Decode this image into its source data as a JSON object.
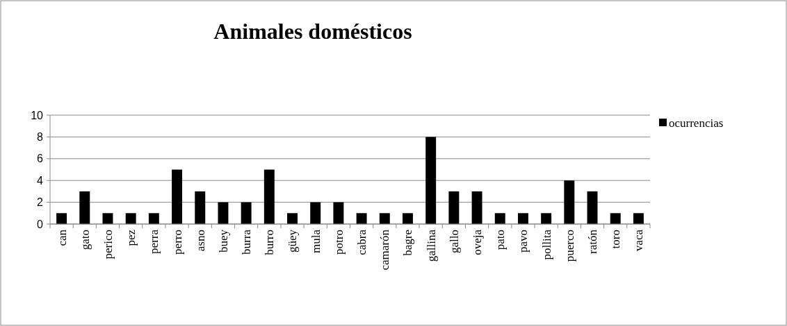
{
  "chart_data": {
    "type": "bar",
    "title": "Animales domésticos",
    "categories": [
      "can",
      "gato",
      "perico",
      "pez",
      "perra",
      "perro",
      "asno",
      "buey",
      "burra",
      "burro",
      "güey",
      "mula",
      "potro",
      "cabra",
      "camarón",
      "bagre",
      "gallina",
      "gallo",
      "oveja",
      "pato",
      "pavo",
      "pollita",
      "puerco",
      "ratón",
      "toro",
      "vaca"
    ],
    "series": [
      {
        "name": "ocurrencias",
        "color": "#000000",
        "values": [
          1,
          3,
          1,
          1,
          1,
          5,
          3,
          2,
          2,
          5,
          1,
          2,
          2,
          1,
          1,
          1,
          8,
          3,
          3,
          1,
          1,
          1,
          4,
          3,
          1,
          1
        ]
      }
    ],
    "ylim": [
      0,
      10
    ],
    "yticks": [
      0,
      2,
      4,
      6,
      8,
      10
    ],
    "grid": "y",
    "legend": "right"
  }
}
